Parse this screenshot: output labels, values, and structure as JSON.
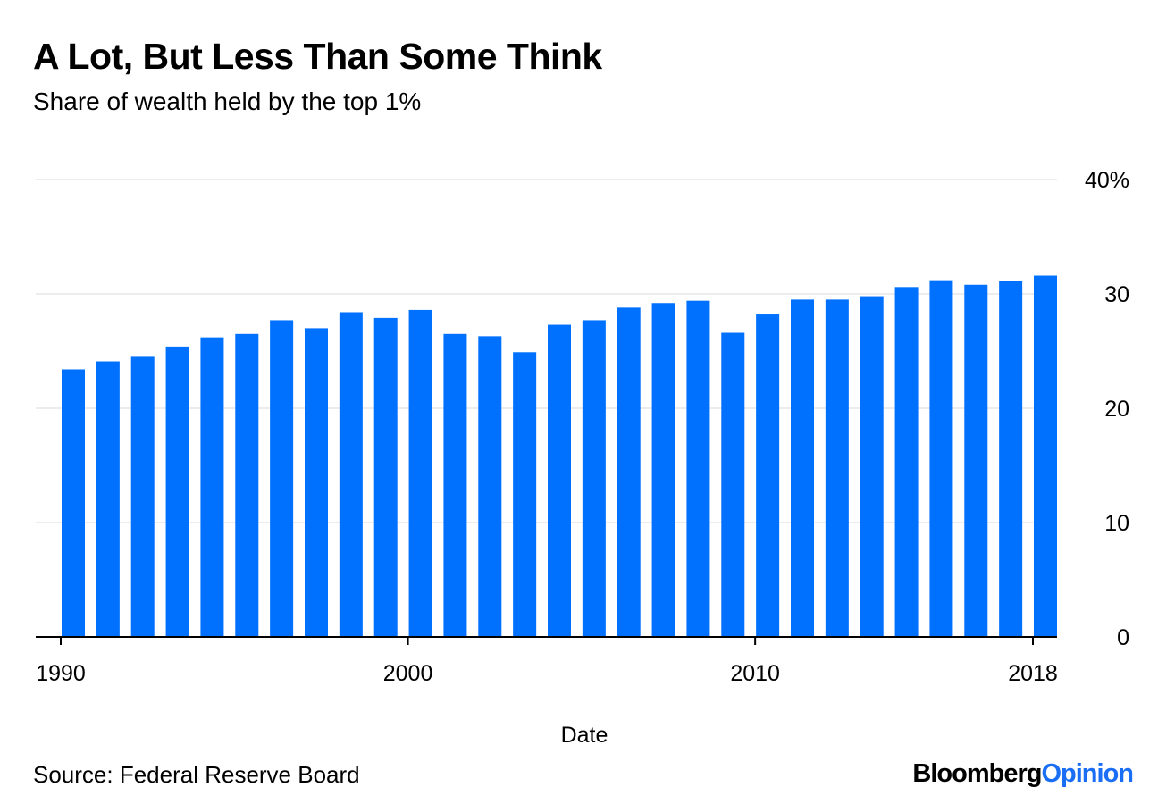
{
  "title": "A Lot, But Less Than Some Think",
  "subtitle": "Share of wealth held by the top 1%",
  "source": "Source: Federal Reserve Board",
  "logo": {
    "part1": "Bloomberg",
    "part2": "Opinion"
  },
  "colors": {
    "bar": "#0070ff",
    "grid": "#ececec",
    "axis": "#000000"
  },
  "chart_data": {
    "type": "bar",
    "xlabel": "Date",
    "ylabel": "",
    "ylim": [
      0,
      40
    ],
    "grid": true,
    "y_ticks": [
      0,
      10,
      20,
      30,
      40
    ],
    "y_tick_labels": [
      "0",
      "10",
      "20",
      "30",
      "40%"
    ],
    "x_tick_labels": [
      "1990",
      "2000",
      "2010",
      "2018"
    ],
    "categories": [
      1990,
      1991,
      1992,
      1993,
      1994,
      1995,
      1996,
      1997,
      1998,
      1999,
      2000,
      2001,
      2002,
      2003,
      2004,
      2005,
      2006,
      2007,
      2008,
      2009,
      2010,
      2011,
      2012,
      2013,
      2014,
      2015,
      2016,
      2017,
      2018
    ],
    "values": [
      23.4,
      24.1,
      24.5,
      25.4,
      26.2,
      26.5,
      27.7,
      27.0,
      28.4,
      27.9,
      28.6,
      26.5,
      26.3,
      24.9,
      27.3,
      27.7,
      28.8,
      29.2,
      29.4,
      26.6,
      28.2,
      29.5,
      29.5,
      29.8,
      30.6,
      31.2,
      30.8,
      31.1,
      31.6
    ]
  }
}
